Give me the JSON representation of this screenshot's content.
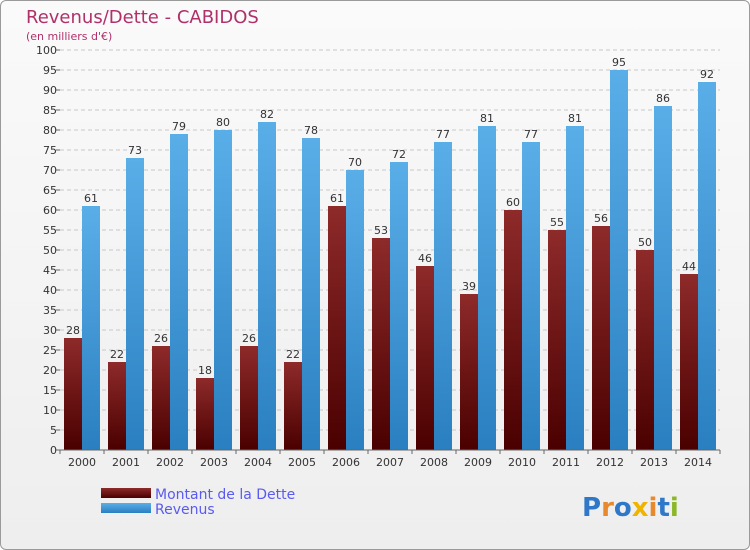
{
  "chart_data": {
    "type": "bar",
    "title": "Revenus/Dette - CABIDOS",
    "subtitle": "(en milliers d'€)",
    "categories": [
      "2000",
      "2001",
      "2002",
      "2003",
      "2004",
      "2005",
      "2006",
      "2007",
      "2008",
      "2009",
      "2010",
      "2011",
      "2012",
      "2013",
      "2014"
    ],
    "series": [
      {
        "name": "Montant de la Dette",
        "color": "#7a1818",
        "values": [
          28,
          22,
          26,
          18,
          26,
          22,
          61,
          53,
          46,
          39,
          60,
          55,
          56,
          50,
          44
        ]
      },
      {
        "name": "Revenus",
        "color": "#3a96dd",
        "values": [
          61,
          73,
          79,
          80,
          82,
          78,
          70,
          72,
          77,
          81,
          77,
          81,
          95,
          86,
          92
        ]
      }
    ],
    "ylim": [
      0,
      100
    ],
    "yticks": [
      0,
      5,
      10,
      15,
      20,
      25,
      30,
      35,
      40,
      45,
      50,
      55,
      60,
      65,
      70,
      75,
      80,
      85,
      90,
      95,
      100
    ],
    "grid": true,
    "legend": "bottom-left"
  },
  "branding": {
    "logo_letters": [
      "P",
      "r",
      "o",
      "x",
      "i",
      "t",
      "i"
    ],
    "logo_colors": [
      "#2f77c9",
      "#e8892d",
      "#2f77c9",
      "#f0b400",
      "#e8892d",
      "#2f77c9",
      "#8ab828"
    ]
  }
}
